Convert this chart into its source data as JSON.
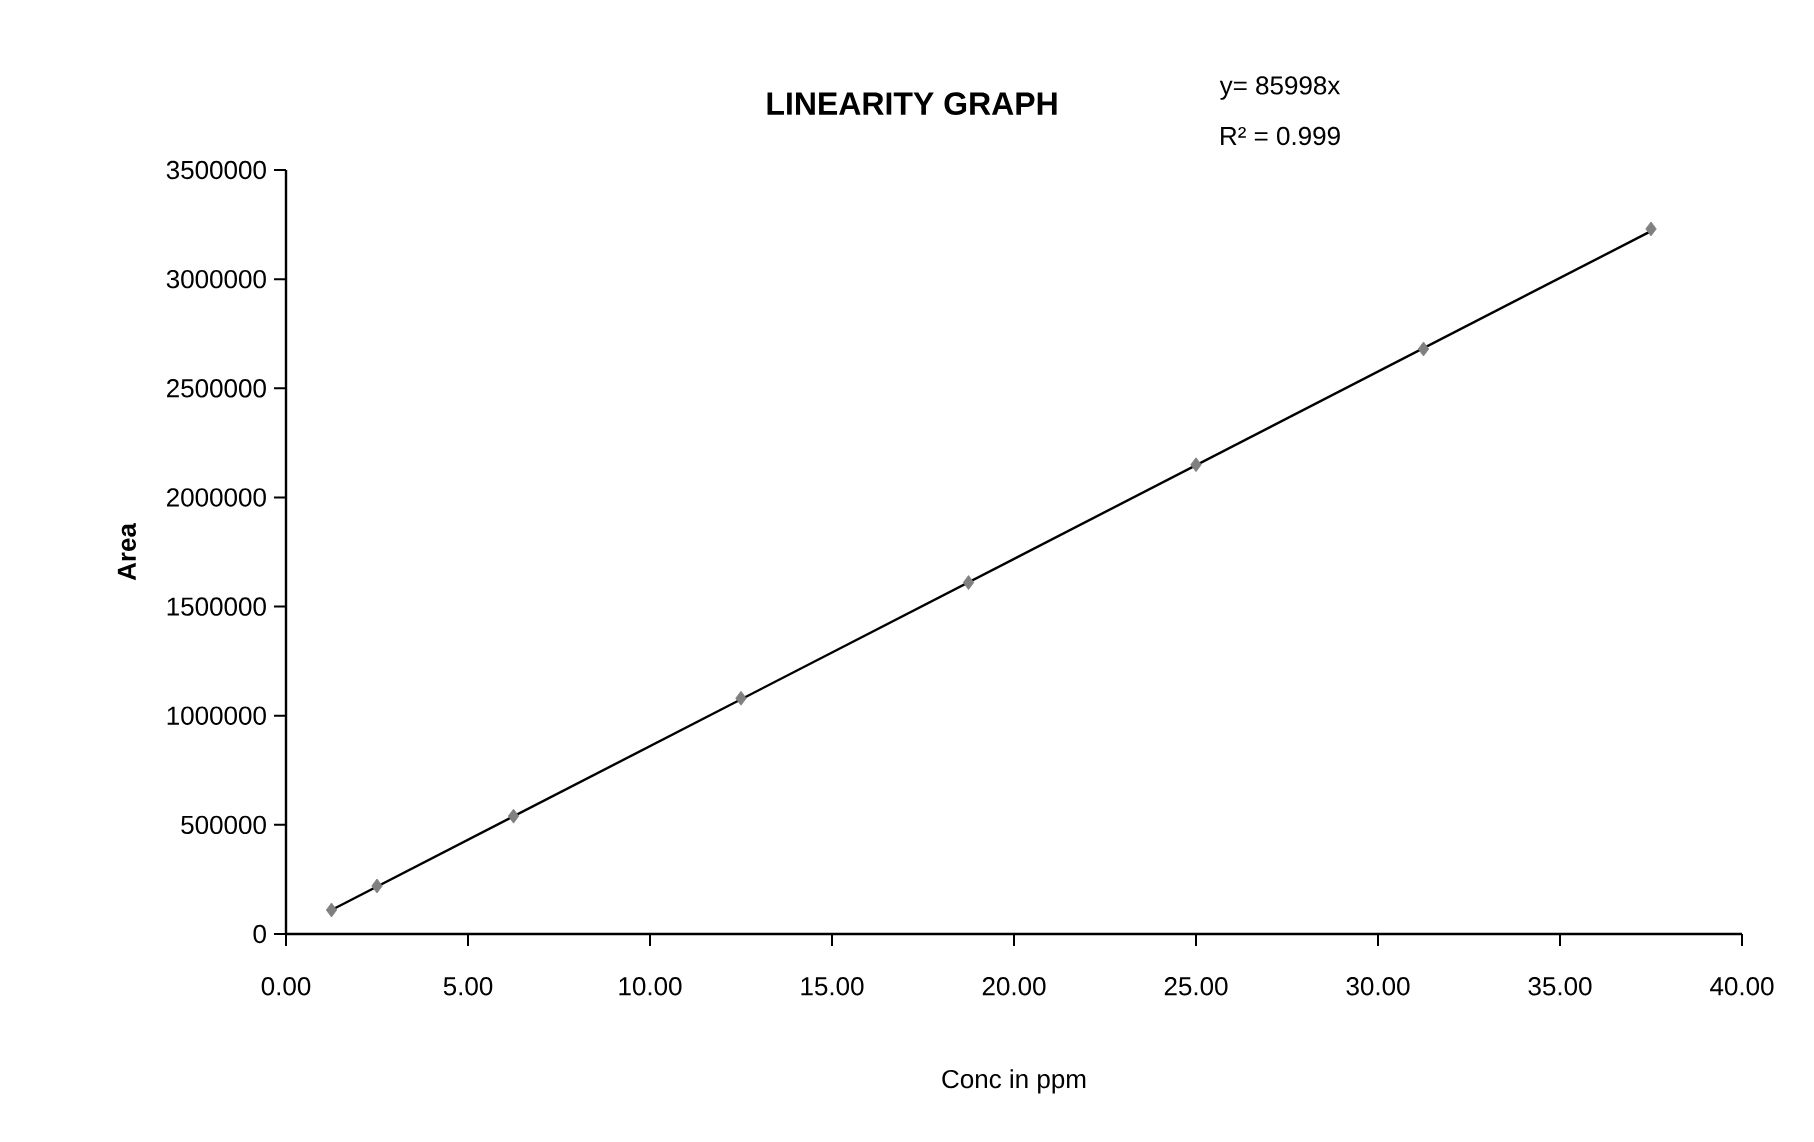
{
  "chart_data": {
    "type": "scatter",
    "title": "LINEARITY GRAPH",
    "xlabel": "Conc in ppm",
    "ylabel": "Area",
    "annotations": [
      "y= 85998x",
      "R² = 0.999"
    ],
    "series": [
      {
        "color": "#808080",
        "marker": "diamond",
        "x": [
          1.25,
          2.5,
          6.25,
          12.5,
          18.75,
          25,
          31.25,
          37.5
        ],
        "values": [
          110000,
          220000,
          540000,
          1080000,
          1610000,
          2150000,
          2680000,
          3230000
        ]
      },
      {
        "type": "line",
        "color": "#000000",
        "marker": "none",
        "line_style": "solid",
        "x": [
          1.25,
          37.5
        ],
        "values": [
          110000,
          3220000
        ]
      }
    ],
    "xlim": [
      0,
      40
    ],
    "xticks": [
      {
        "value": 0,
        "label": "0.00"
      },
      {
        "value": 5,
        "label": "5.00"
      },
      {
        "value": 10,
        "label": "10.00"
      },
      {
        "value": 15,
        "label": "15.00"
      },
      {
        "value": 20,
        "label": "20.00"
      },
      {
        "value": 25,
        "label": "25.00"
      },
      {
        "value": 30,
        "label": "30.00"
      },
      {
        "value": 35,
        "label": "35.00"
      },
      {
        "value": 40,
        "label": "40.00"
      }
    ],
    "ylim": [
      0,
      3500000
    ],
    "yticks": [
      0,
      500000,
      1000000,
      1500000,
      2000000,
      2500000,
      3000000,
      3500000
    ],
    "grid": false
  }
}
